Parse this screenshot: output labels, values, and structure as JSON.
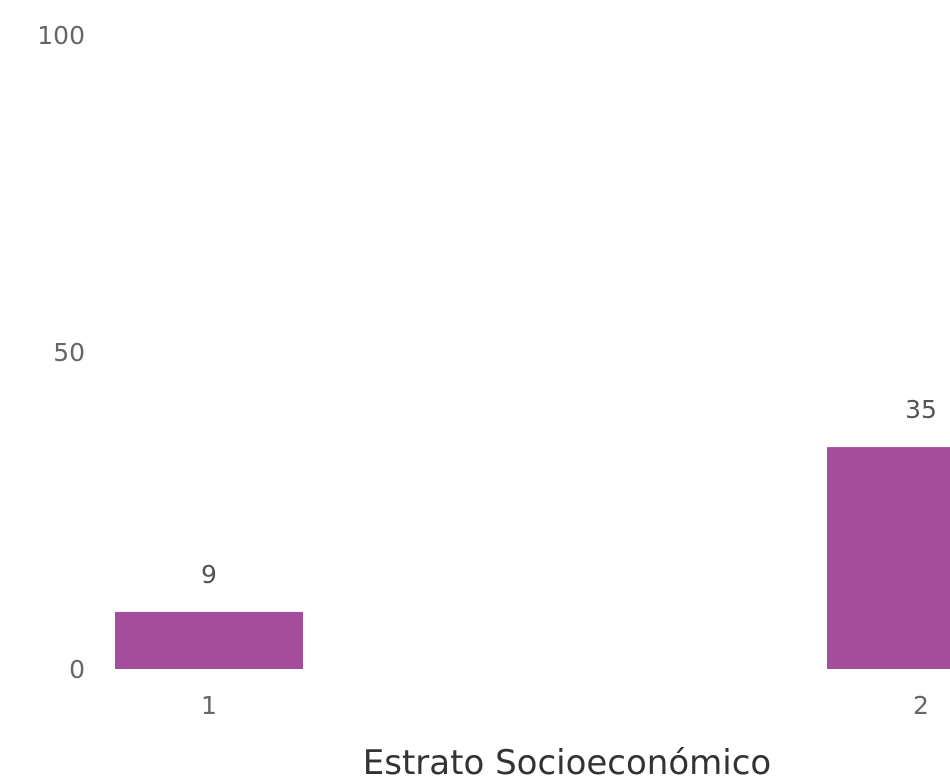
{
  "chart_data": {
    "type": "bar",
    "categories": [
      "1",
      "2"
    ],
    "values": [
      9,
      35
    ],
    "data_labels": [
      "9",
      "35"
    ],
    "xlabel": "Estrato Socioeconómico",
    "ylabel": "",
    "ylim": [
      0,
      100
    ],
    "yticks": [
      "0",
      "50",
      "100"
    ],
    "grid": false,
    "bar_color": "#a34d9c"
  }
}
